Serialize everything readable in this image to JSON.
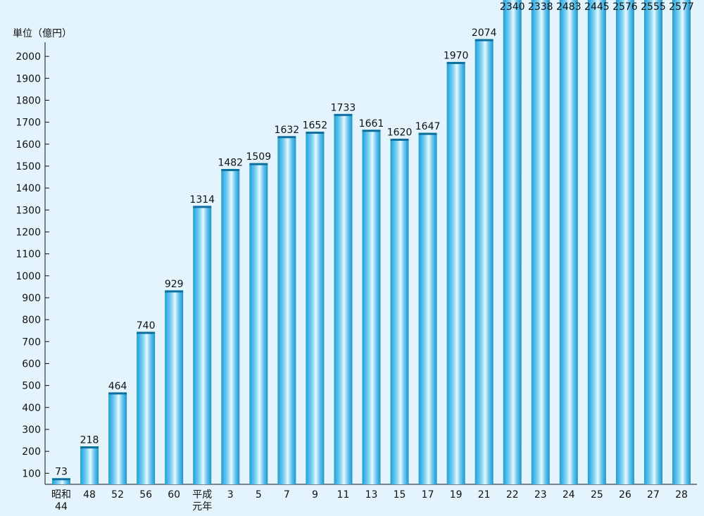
{
  "chart_data": {
    "type": "bar",
    "unit_label": "単位（億円）",
    "categories": [
      "昭和\n44",
      "48",
      "52",
      "56",
      "60",
      "平成\n元年",
      "3",
      "5",
      "7",
      "9",
      "11",
      "13",
      "15",
      "17",
      "19",
      "21",
      "22",
      "23",
      "24",
      "25",
      "26",
      "27",
      "28"
    ],
    "values": [
      73,
      218,
      464,
      740,
      929,
      1314,
      1482,
      1509,
      1632,
      1652,
      1733,
      1661,
      1620,
      1647,
      1970,
      2074,
      2340,
      2338,
      2483,
      2445,
      2576,
      2555,
      2577
    ],
    "value_labels": [
      "73",
      "218",
      "464",
      "740",
      "929",
      "1314",
      "1482",
      "1509",
      "1632",
      "1652",
      "1733",
      "1661",
      "1620",
      "1647",
      "1970",
      "2074",
      "2340",
      "2338",
      "2483",
      "2445",
      "2576",
      "2555",
      "2577"
    ],
    "y_ticks": [
      100,
      200,
      300,
      400,
      500,
      600,
      700,
      800,
      900,
      1000,
      1100,
      1200,
      1300,
      1400,
      1500,
      1600,
      1700,
      1800,
      1900,
      2000
    ],
    "ylim": [
      50,
      2000
    ],
    "grid": false,
    "legend": "none",
    "bar_color": "#3ab5e6",
    "bar_highlight": "#e8f8ff",
    "background": "#e3f4fc"
  }
}
